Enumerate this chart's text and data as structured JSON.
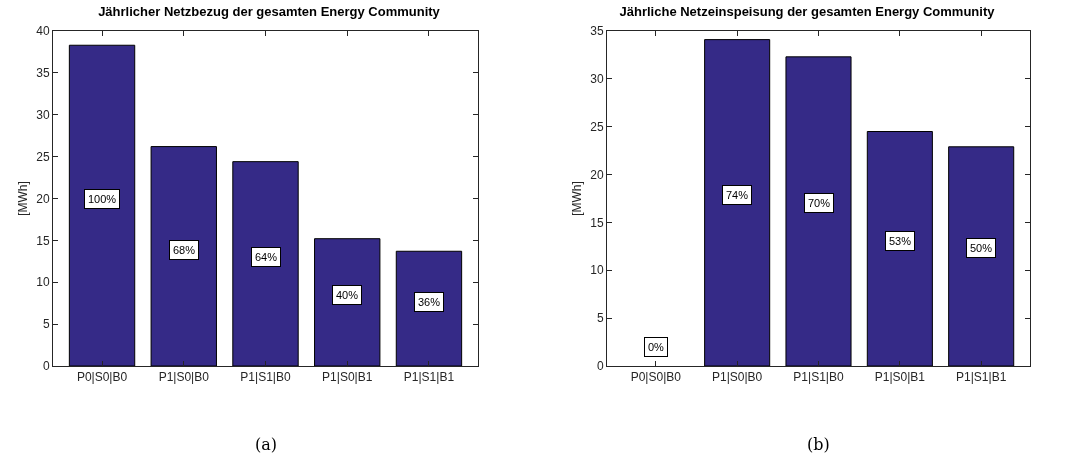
{
  "chart_data": [
    {
      "type": "bar",
      "title": "Jährlicher Netzbezug der gesamten Energy Community",
      "ylabel": "[MWh]",
      "categories": [
        "P0|S0|B0",
        "P1|S0|B0",
        "P1|S1|B0",
        "P1|S0|B1",
        "P1|S1|B1"
      ],
      "values": [
        38.3,
        26.2,
        24.4,
        15.2,
        13.7
      ],
      "color": "#352a87",
      "ylim": [
        0,
        40
      ],
      "yticks": [
        0,
        5,
        10,
        15,
        20,
        25,
        30,
        35,
        40
      ],
      "grid": false,
      "annotations": [
        {
          "text": "100%",
          "x": "P0|S0|B0",
          "y": 20
        },
        {
          "text": "68%",
          "x": "P1|S0|B0",
          "y": 13.9
        },
        {
          "text": "64%",
          "x": "P1|S1|B0",
          "y": 13
        },
        {
          "text": "40%",
          "x": "P1|S0|B1",
          "y": 8.5
        },
        {
          "text": "36%",
          "x": "P1|S1|B1",
          "y": 7.7
        },
        "(a)"
      ]
    },
    {
      "type": "bar",
      "title": "Jährliche Netzeinspeisung der gesamten Energy Community",
      "ylabel": "[MWh]",
      "categories": [
        "P0|S0|B0",
        "P1|S0|B0",
        "P1|S1|B0",
        "P1|S0|B1",
        "P1|S1|B1"
      ],
      "values": [
        0,
        34.1,
        32.3,
        24.5,
        22.9
      ],
      "color": "#352a87",
      "ylim": [
        0,
        35
      ],
      "yticks": [
        0,
        5,
        10,
        15,
        20,
        25,
        30,
        35
      ],
      "grid": false,
      "annotations": [
        {
          "text": "0%",
          "x": "P0|S0|B0",
          "y": 2
        },
        {
          "text": "74%",
          "x": "P1|S0|B0",
          "y": 17.9
        },
        {
          "text": "70%",
          "x": "P1|S1|B0",
          "y": 17
        },
        {
          "text": "53%",
          "x": "P1|S0|B1",
          "y": 13.1
        },
        {
          "text": "50%",
          "x": "P1|S1|B1",
          "y": 12.3
        },
        "(b)"
      ]
    }
  ]
}
